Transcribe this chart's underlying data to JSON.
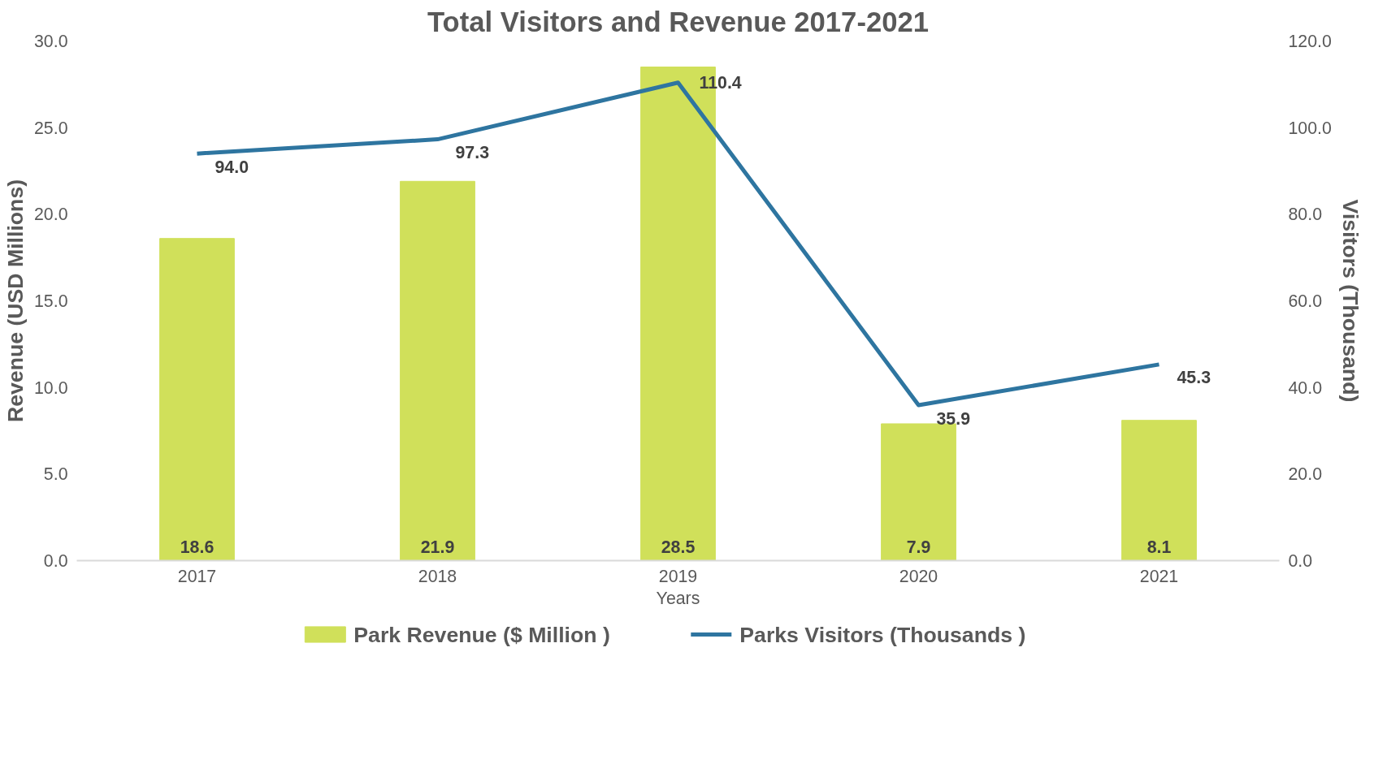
{
  "chart_data": {
    "type": "bar",
    "title": "Total Visitors and Revenue 2017-2021",
    "xlabel": "Years",
    "ylabel": "Revenue (USD Millions)",
    "y2label": "Visitors (Thousand)",
    "categories": [
      "2017",
      "2018",
      "2019",
      "2020",
      "2021"
    ],
    "series": [
      {
        "name": "Park Revenue ($ Million )",
        "color": "#d0e05a",
        "values": [
          18.6,
          21.9,
          28.5,
          7.9,
          8.1
        ],
        "value_labels": [
          "18.6",
          "21.9",
          "28.5",
          "7.9",
          "8.1"
        ]
      },
      {
        "name": "Parks Visitors (Thousands )",
        "type": "line",
        "axis": "y2",
        "color": "#2e75a0",
        "values": [
          94.0,
          97.3,
          110.4,
          35.9,
          45.3
        ],
        "value_labels": [
          "94.0",
          "97.3",
          "110.4",
          "35.9",
          "45.3"
        ]
      }
    ],
    "ylim": [
      0,
      30
    ],
    "yticks": [
      {
        "value": 0,
        "label": "0.0"
      },
      {
        "value": 5,
        "label": "5.0"
      },
      {
        "value": 10,
        "label": "10.0"
      },
      {
        "value": 15,
        "label": "15.0"
      },
      {
        "value": 20,
        "label": "20.0"
      },
      {
        "value": 25,
        "label": "25.0"
      },
      {
        "value": 30,
        "label": "30.0"
      }
    ],
    "y2lim": [
      0,
      120
    ],
    "y2ticks": [
      {
        "value": 0,
        "label": "0.0"
      },
      {
        "value": 20,
        "label": "20.0"
      },
      {
        "value": 40,
        "label": "40.0"
      },
      {
        "value": 60,
        "label": "60.0"
      },
      {
        "value": 80,
        "label": "80.0"
      },
      {
        "value": 100,
        "label": "100.0"
      },
      {
        "value": 120,
        "label": "120.0"
      }
    ],
    "legend": "bottom",
    "line_style": "solid",
    "marker": "none"
  }
}
